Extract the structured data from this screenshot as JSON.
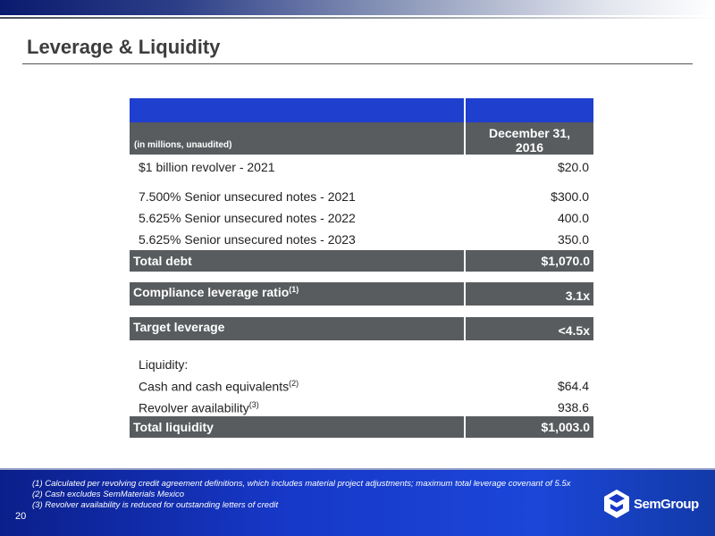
{
  "title": "Leverage & Liquidity",
  "table": {
    "unit_label": "(in millions, unaudited)",
    "column_header": "December 31,\n2016",
    "debt_rows": [
      {
        "label": "$1 billion revolver - 2021",
        "value": "$20.0"
      },
      {
        "label": "7.500% Senior unsecured notes - 2021",
        "value": "$300.0"
      },
      {
        "label": "5.625% Senior unsecured notes - 2022",
        "value": "400.0"
      },
      {
        "label": "5.625% Senior unsecured notes - 2023",
        "value": "350.0"
      }
    ],
    "total_debt": {
      "label": "Total debt",
      "value": "$1,070.0"
    },
    "compliance": {
      "label": "Compliance leverage ratio",
      "sup": "(1)",
      "value": "3.1x"
    },
    "target": {
      "label": "Target leverage",
      "value": "<4.5x"
    },
    "liquidity_header": "Liquidity:",
    "cash": {
      "label": "Cash and cash equivalents",
      "sup": "(2)",
      "value": "$64.4"
    },
    "revolver": {
      "label": "Revolver availability",
      "sup": "(3)",
      "value": "938.6"
    },
    "total_liquidity": {
      "label": "Total liquidity",
      "value": "$1,003.0"
    }
  },
  "footnotes": [
    "(1) Calculated per revolving credit agreement definitions, which includes material project adjustments; maximum total leverage covenant of 5.5x",
    "(2) Cash excludes SemMaterials Mexico",
    "(3) Revolver availability is reduced for outstanding letters of credit"
  ],
  "page_number": "20",
  "logo_text": "SemGroup",
  "colors": {
    "header_blue": "#1f3fcf",
    "row_gray": "#585c5e",
    "footer_blue": "#1738c8"
  }
}
